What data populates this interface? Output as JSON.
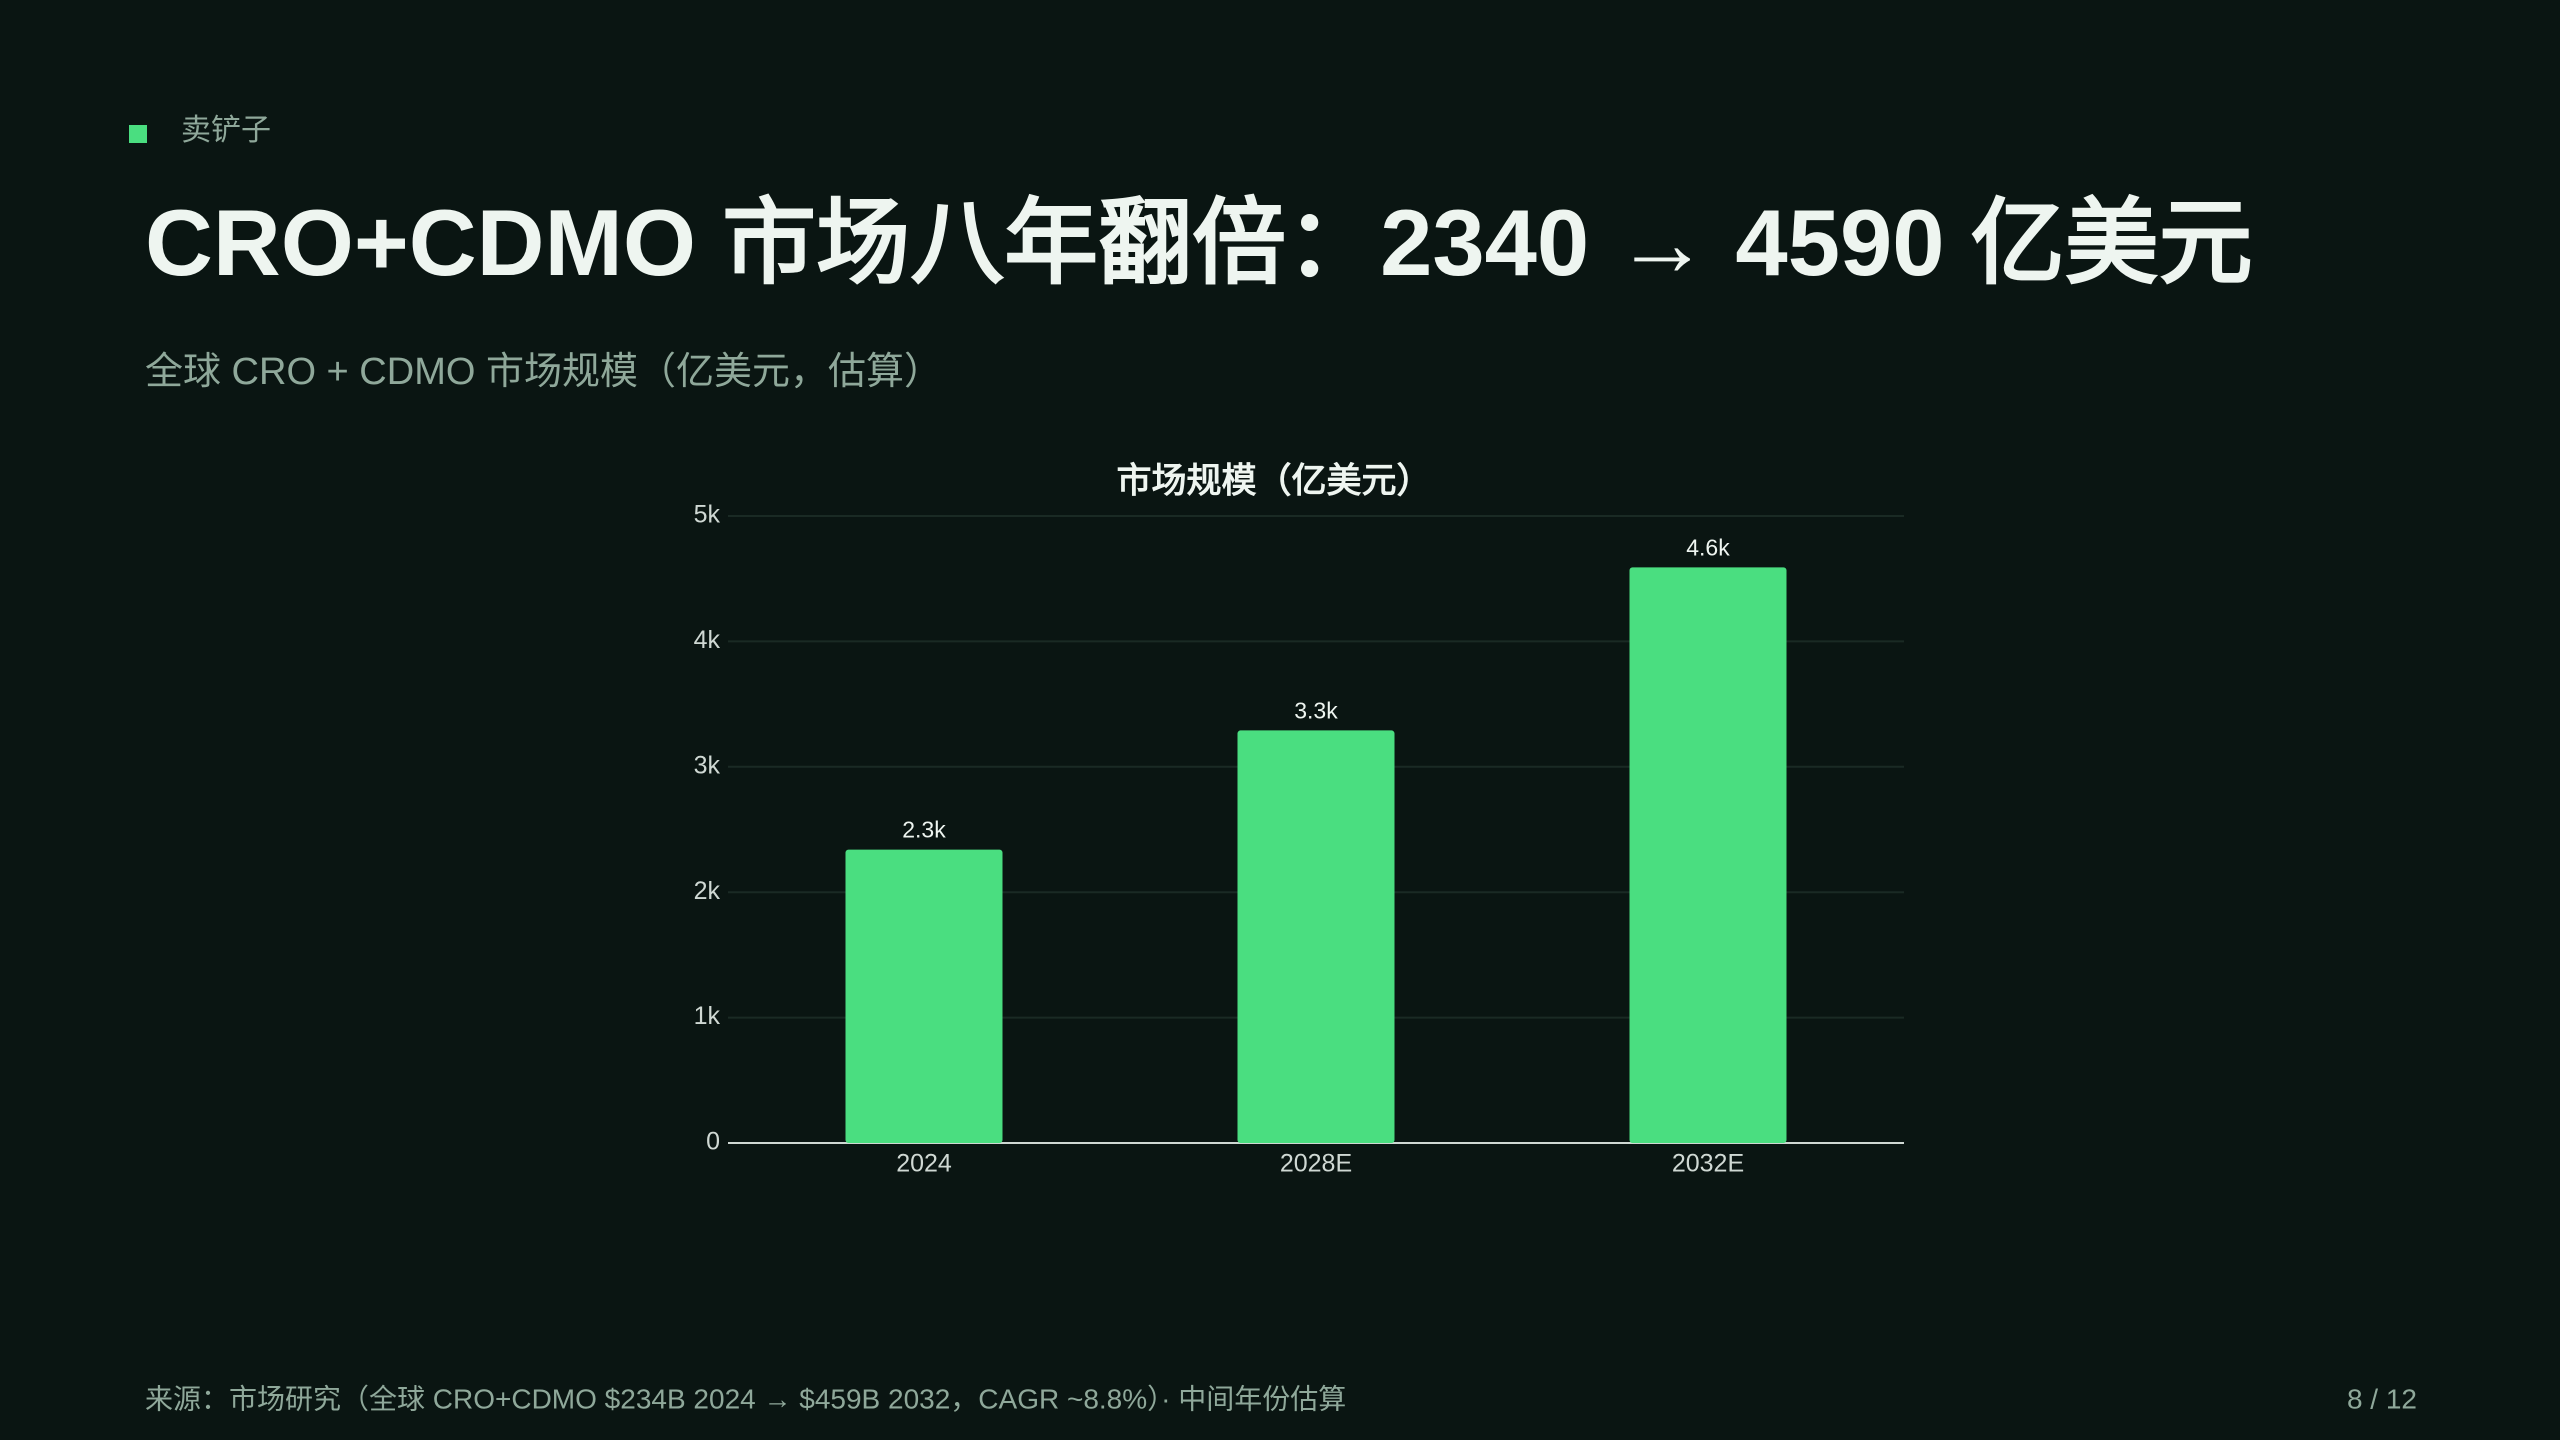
{
  "section": "卖铲子",
  "title": "CRO+CDMO 市场八年翻倍：2340 → 4590 亿美元",
  "subtitle": "全球 CRO + CDMO 市场规模（亿美元，估算）",
  "chart_data": {
    "type": "bar",
    "title": "市场规模（亿美元）",
    "categories": [
      "2024",
      "2028E",
      "2032E"
    ],
    "values": [
      2340,
      3290,
      4590
    ],
    "value_labels": [
      "2.3k",
      "3.3k",
      "4.6k"
    ],
    "color": "#4ade80",
    "ylim": [
      0,
      5000
    ],
    "yticks": [
      0,
      {
        "value": 1000,
        "label": "1k"
      },
      {
        "value": 2000,
        "label": "2k"
      },
      {
        "value": 3000,
        "label": "3k"
      },
      {
        "value": 4000,
        "label": "4k"
      },
      {
        "value": 5000,
        "label": "5k"
      }
    ],
    "grid": true
  },
  "footer": {
    "source": "来源：市场研究（全球 CRO+CDMO $234B 2024 → $459B 2032，CAGR ~8.8%）· 中间年份估算",
    "page": "8 / 12"
  }
}
